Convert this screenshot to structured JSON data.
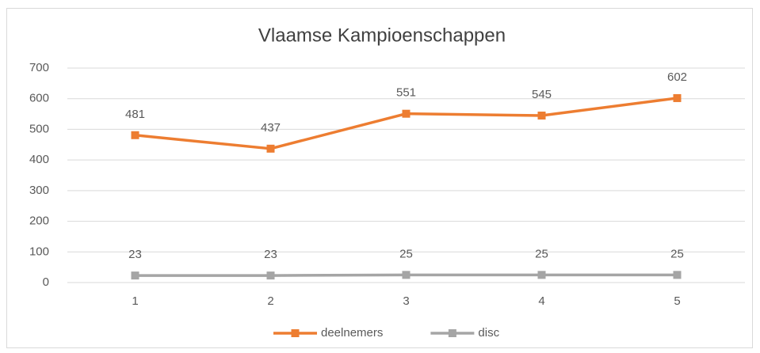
{
  "chart_data": {
    "type": "line",
    "title": "Vlaamse Kampioenschappen",
    "categories": [
      "1",
      "2",
      "3",
      "4",
      "5"
    ],
    "series": [
      {
        "name": "deelnemers",
        "color": "#ed7d31",
        "values": [
          481,
          437,
          551,
          545,
          602
        ]
      },
      {
        "name": "disc",
        "color": "#a5a5a5",
        "values": [
          23,
          23,
          25,
          25,
          25
        ]
      }
    ],
    "ylim": [
      0,
      700
    ],
    "yticks": [
      0,
      100,
      200,
      300,
      400,
      500,
      600,
      700
    ],
    "grid": true,
    "legend": "bottom"
  }
}
